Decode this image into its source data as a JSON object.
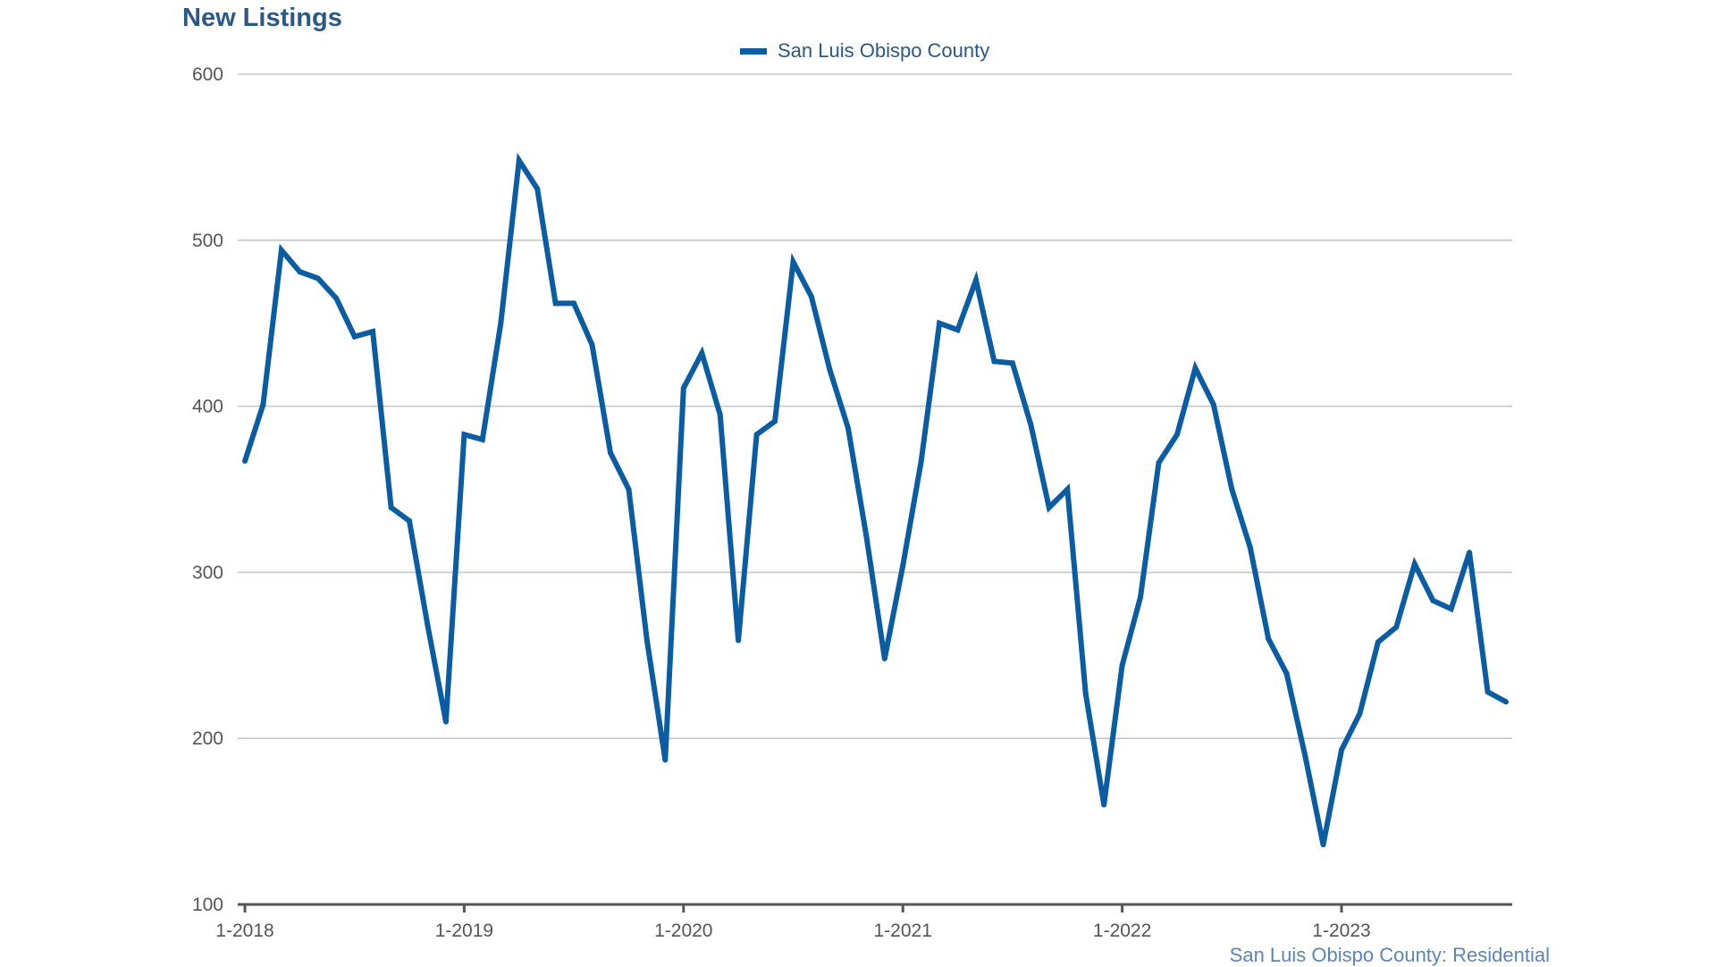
{
  "chart_data": {
    "type": "line",
    "title": "New Listings",
    "legend": {
      "placement": "top-center",
      "entries": [
        "San Luis Obispo County"
      ]
    },
    "footer": "San Luis Obispo County: Residential",
    "colors": {
      "series": "#0a5da3",
      "title": "#2a5887",
      "grid": "#c8c8c8",
      "axis": "#555555",
      "footer": "#5b85b8"
    },
    "grid": true,
    "x_start": "1-2018",
    "x_tick_labels": [
      "1-2018",
      "1-2019",
      "1-2020",
      "1-2021",
      "1-2022",
      "1-2023"
    ],
    "y_ticks": [
      100,
      200,
      300,
      400,
      500,
      600
    ],
    "ylim": [
      100,
      600
    ],
    "series": [
      {
        "name": "San Luis Obispo County",
        "values": [
          367,
          401,
          494,
          481,
          477,
          465,
          442,
          445,
          339,
          331,
          268,
          210,
          383,
          380,
          450,
          548,
          531,
          462,
          462,
          437,
          372,
          350,
          259,
          187,
          411,
          432,
          395,
          259,
          383,
          391,
          487,
          466,
          422,
          387,
          322,
          248,
          304,
          367,
          450,
          446,
          476,
          427,
          426,
          389,
          339,
          350,
          227,
          160,
          244,
          285,
          366,
          383,
          423,
          401,
          350,
          315,
          260,
          239,
          190,
          136,
          193,
          215,
          258,
          267,
          305,
          283,
          278,
          312,
          228,
          222
        ]
      }
    ]
  }
}
